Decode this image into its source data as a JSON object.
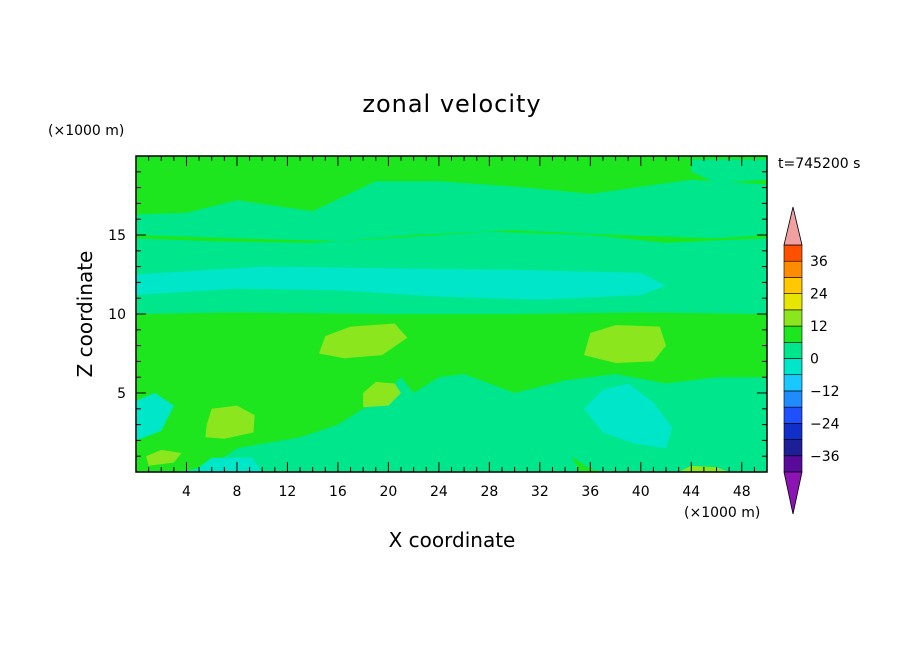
{
  "chart_data": {
    "type": "heatmap",
    "title": "zonal velocity",
    "xlabel": "X coordinate",
    "ylabel": "Z coordinate",
    "x_unit": "(×1000 m)",
    "y_unit": "(×1000 m)",
    "time_label": "t=745200 s",
    "xlim": [
      0,
      50
    ],
    "ylim": [
      0,
      20
    ],
    "x_ticks": [
      4,
      8,
      12,
      16,
      20,
      24,
      28,
      32,
      36,
      40,
      44,
      48
    ],
    "y_ticks": [
      5,
      10,
      15
    ],
    "colorbar": {
      "tick_labels": [
        "36",
        "24",
        "12",
        "0",
        "−12",
        "−24",
        "−36"
      ],
      "tick_values": [
        36,
        24,
        12,
        0,
        -12,
        -24,
        -36
      ],
      "levels": [
        -42,
        -36,
        -30,
        -24,
        -18,
        -12,
        -6,
        0,
        6,
        12,
        18,
        24,
        30,
        36,
        42
      ],
      "band_colors": [
        "#5a0a9a",
        "#1e1e96",
        "#0f2fc8",
        "#1e50ff",
        "#1e8cff",
        "#19c8ff",
        "#00e6c8",
        "#00e68c",
        "#1ee61e",
        "#8ce61e",
        "#e6e600",
        "#ffc800",
        "#ff8c00",
        "#ff5000",
        "#e61e1e"
      ],
      "under_color": "#8c14b4",
      "over_color": "#f0a0a0"
    },
    "field_regions": [
      {
        "value": 3,
        "label": "0 to 6",
        "color": "#1ee61e",
        "polygon": [
          [
            0,
            0
          ],
          [
            50,
            0
          ],
          [
            50,
            20
          ],
          [
            0,
            20
          ]
        ]
      },
      {
        "value": -3,
        "label": "-6 to 0",
        "color": "#00e68c",
        "polygon": [
          [
            0,
            15
          ],
          [
            8,
            14.8
          ],
          [
            16,
            14.6
          ],
          [
            22,
            15
          ],
          [
            30,
            15.3
          ],
          [
            38,
            15
          ],
          [
            46,
            14.8
          ],
          [
            50,
            15
          ],
          [
            50,
            18.2
          ],
          [
            44,
            18.5
          ],
          [
            36,
            17.6
          ],
          [
            31,
            18
          ],
          [
            24,
            18.4
          ],
          [
            19,
            18.4
          ],
          [
            14,
            16.5
          ],
          [
            8,
            17.2
          ],
          [
            4,
            16.4
          ],
          [
            0,
            16.3
          ]
        ]
      },
      {
        "value": -3,
        "label": "-6 to 0",
        "color": "#00e68c",
        "polygon": [
          [
            44,
            19.8
          ],
          [
            50,
            19.8
          ],
          [
            50,
            18.5
          ],
          [
            46,
            18.3
          ],
          [
            44,
            19
          ]
        ]
      },
      {
        "value": -3,
        "label": "-6 to 0",
        "color": "#00e68c",
        "polygon": [
          [
            0,
            10
          ],
          [
            8,
            10.1
          ],
          [
            20,
            10
          ],
          [
            30,
            10
          ],
          [
            40,
            10.1
          ],
          [
            50,
            10
          ],
          [
            50,
            14.8
          ],
          [
            42,
            14.5
          ],
          [
            36,
            15
          ],
          [
            28,
            15.2
          ],
          [
            20,
            14.8
          ],
          [
            14,
            14.5
          ],
          [
            6,
            14.6
          ],
          [
            0,
            14.8
          ]
        ]
      },
      {
        "value": -9,
        "label": "-12 to -6",
        "color": "#00e6c8",
        "polygon": [
          [
            0,
            11.2
          ],
          [
            8,
            11.6
          ],
          [
            16,
            11.5
          ],
          [
            24,
            11.1
          ],
          [
            32,
            10.9
          ],
          [
            40,
            11.2
          ],
          [
            42,
            11.8
          ],
          [
            40,
            12.6
          ],
          [
            30,
            12.8
          ],
          [
            20,
            12.9
          ],
          [
            10,
            13
          ],
          [
            4,
            12.7
          ],
          [
            0,
            12.5
          ]
        ]
      },
      {
        "value": -3,
        "label": "-6 to 0",
        "color": "#00e68c",
        "polygon": [
          [
            0,
            0
          ],
          [
            3,
            0
          ],
          [
            6,
            0.4
          ],
          [
            8,
            1.5
          ],
          [
            13,
            2.2
          ],
          [
            16,
            3
          ],
          [
            19,
            4.5
          ],
          [
            21,
            6
          ],
          [
            22,
            5
          ],
          [
            24,
            6
          ],
          [
            26,
            6.2
          ],
          [
            30,
            5
          ],
          [
            34,
            5.8
          ],
          [
            38,
            6.2
          ],
          [
            42,
            5.6
          ],
          [
            46,
            6
          ],
          [
            50,
            6
          ],
          [
            50,
            0
          ],
          [
            0,
            0
          ]
        ]
      },
      {
        "value": -9,
        "label": "-12 to -6",
        "color": "#00e6c8",
        "polygon": [
          [
            0,
            2
          ],
          [
            2,
            2.6
          ],
          [
            3,
            4.2
          ],
          [
            1.5,
            5
          ],
          [
            0,
            4.5
          ]
        ]
      },
      {
        "value": -9,
        "label": "-12 to -6",
        "color": "#00e6c8",
        "polygon": [
          [
            35.5,
            4
          ],
          [
            37,
            5.2
          ],
          [
            39,
            5.6
          ],
          [
            41,
            4.4
          ],
          [
            42.5,
            2.8
          ],
          [
            42,
            1.5
          ],
          [
            39.5,
            1.8
          ],
          [
            37,
            2.5
          ]
        ]
      },
      {
        "value": -9,
        "label": "-12 to -6",
        "color": "#00e6c8",
        "polygon": [
          [
            4.5,
            0
          ],
          [
            10,
            0
          ],
          [
            9.2,
            0.9
          ],
          [
            6,
            0.9
          ]
        ]
      },
      {
        "value": 9,
        "label": "6 to 12",
        "color": "#8ce61e",
        "polygon": [
          [
            5.5,
            2.2
          ],
          [
            7,
            2.1
          ],
          [
            9.3,
            2.5
          ],
          [
            9.4,
            3.6
          ],
          [
            8,
            4.2
          ],
          [
            6,
            4
          ],
          [
            5.6,
            3
          ]
        ]
      },
      {
        "value": 9,
        "label": "6 to 12",
        "color": "#8ce61e",
        "polygon": [
          [
            14.5,
            7.5
          ],
          [
            16.5,
            7.2
          ],
          [
            19.5,
            7.4
          ],
          [
            21.5,
            8.5
          ],
          [
            20.5,
            9.4
          ],
          [
            17,
            9.2
          ],
          [
            15,
            8.6
          ]
        ]
      },
      {
        "value": 9,
        "label": "6 to 12",
        "color": "#8ce61e",
        "polygon": [
          [
            18,
            4.1
          ],
          [
            20,
            4.2
          ],
          [
            21,
            5
          ],
          [
            20.5,
            5.6
          ],
          [
            19,
            5.7
          ],
          [
            18,
            5
          ]
        ]
      },
      {
        "value": 9,
        "label": "6 to 12",
        "color": "#8ce61e",
        "polygon": [
          [
            35.5,
            7.4
          ],
          [
            38,
            6.9
          ],
          [
            41,
            7
          ],
          [
            42,
            8
          ],
          [
            41.5,
            9.2
          ],
          [
            38,
            9.3
          ],
          [
            36,
            8.8
          ]
        ]
      },
      {
        "value": 9,
        "label": "6 to 12",
        "color": "#8ce61e",
        "polygon": [
          [
            1,
            0.4
          ],
          [
            3,
            0.6
          ],
          [
            3.6,
            1.2
          ],
          [
            2,
            1.4
          ],
          [
            0.8,
            1
          ]
        ]
      },
      {
        "value": 9,
        "label": "6 to 12",
        "color": "#8ce61e",
        "polygon": [
          [
            43,
            0
          ],
          [
            47,
            0
          ],
          [
            46,
            0.3
          ],
          [
            44,
            0.4
          ]
        ]
      },
      {
        "value": 3,
        "label": "0 to 6",
        "color": "#1ee61e",
        "polygon": [
          [
            4.5,
            18.2
          ],
          [
            6.5,
            17.7
          ],
          [
            6.8,
            18.1
          ],
          [
            5,
            18.5
          ]
        ]
      },
      {
        "value": 3,
        "label": "0 to 6",
        "color": "#1ee61e",
        "polygon": [
          [
            34.5,
            1
          ],
          [
            36,
            0.2
          ],
          [
            37,
            0
          ],
          [
            35.2,
            0
          ]
        ]
      }
    ]
  }
}
